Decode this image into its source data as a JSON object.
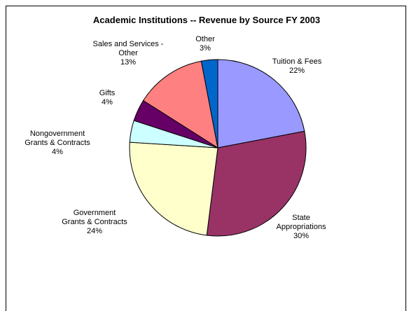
{
  "chart_data": {
    "type": "pie",
    "title": "Academic Institutions -- Revenue by Source FY 2003",
    "slices": [
      {
        "label": "Tuition & Fees",
        "label_lines": [
          "Tuition & Fees",
          "22%"
        ],
        "value": 22,
        "color": "#9999ff"
      },
      {
        "label": "State Appropriations",
        "label_lines": [
          "State",
          "Appropriations",
          "30%"
        ],
        "value": 30,
        "color": "#993366"
      },
      {
        "label": "Government Grants & Contracts",
        "label_lines": [
          "Government",
          "Grants & Contracts",
          "24%"
        ],
        "value": 24,
        "color": "#ffffcc"
      },
      {
        "label": "Nongovernment Grants & Contracts",
        "label_lines": [
          "Nongovernment",
          "Grants & Contracts",
          "4%"
        ],
        "value": 4,
        "color": "#ccffff"
      },
      {
        "label": "Gifts",
        "label_lines": [
          "Gifts",
          "4%"
        ],
        "value": 4,
        "color": "#660066"
      },
      {
        "label": "Sales and Services - Other",
        "label_lines": [
          "Sales and Services -",
          "Other",
          "13%"
        ],
        "value": 13,
        "color": "#ff8080"
      },
      {
        "label": "Other",
        "label_lines": [
          "Other",
          "3%"
        ],
        "value": 3,
        "color": "#0066cc"
      }
    ]
  }
}
